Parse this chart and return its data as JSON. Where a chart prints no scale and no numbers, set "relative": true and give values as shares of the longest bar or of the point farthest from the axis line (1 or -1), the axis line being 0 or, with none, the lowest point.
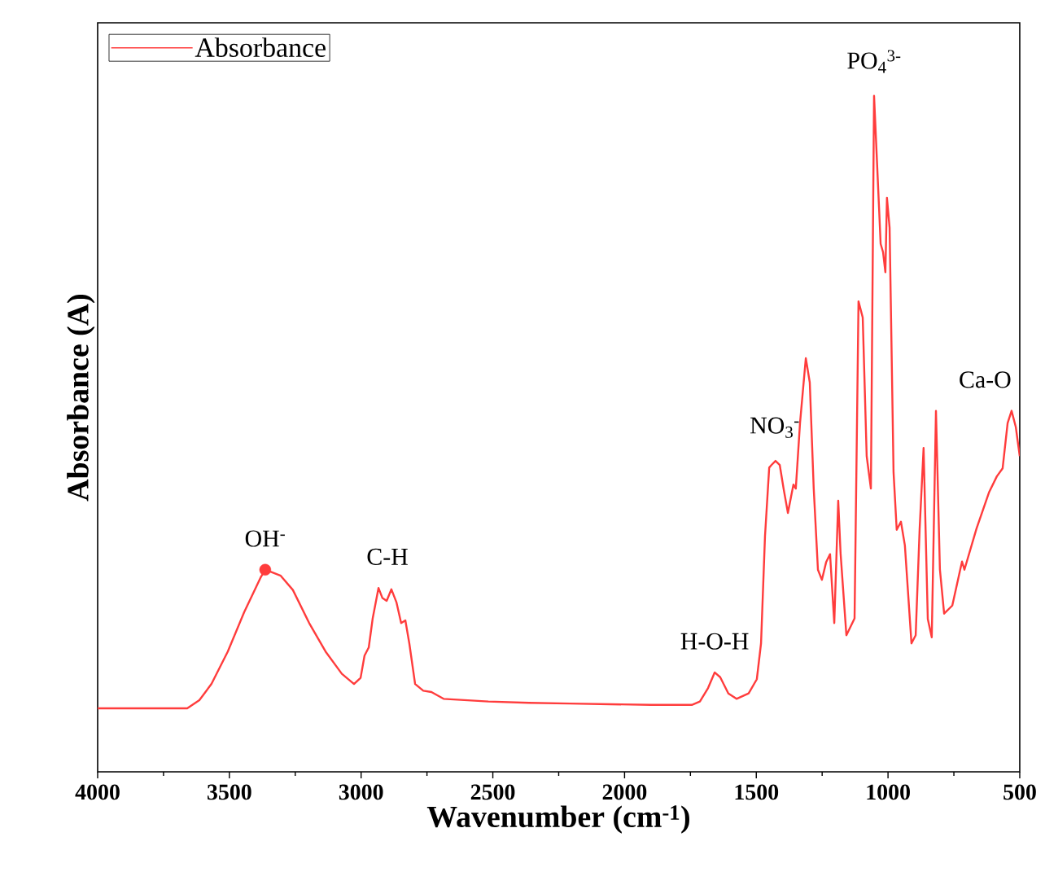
{
  "chart_data": {
    "type": "line",
    "xlabel": "Wavenumber (cm$^{-1}$)",
    "ylabel": "Absorbance (A)",
    "relative": true,
    "xlim": [
      4000,
      500
    ],
    "xticks": [
      4000,
      3500,
      3000,
      2500,
      2000,
      1500,
      1000,
      500
    ],
    "legend": "top left",
    "line_style": "solid",
    "marker": "none",
    "series": [
      {
        "name": "Absorbance",
        "color": "#ff3c3c",
        "x": [
          4000,
          3660,
          3614,
          3568,
          3506,
          3444,
          3382,
          3364,
          3305,
          3259,
          3197,
          3135,
          3073,
          3027,
          3002,
          2987,
          2971,
          2956,
          2934,
          2919,
          2903,
          2885,
          2866,
          2848,
          2832,
          2817,
          2795,
          2764,
          2733,
          2687,
          2517,
          2363,
          2208,
          2054,
          1899,
          1745,
          1714,
          1683,
          1658,
          1637,
          1606,
          1575,
          1529,
          1498,
          1482,
          1467,
          1451,
          1442,
          1427,
          1411,
          1396,
          1380,
          1368,
          1359,
          1350,
          1334,
          1312,
          1297,
          1282,
          1266,
          1251,
          1235,
          1220,
          1204,
          1189,
          1180,
          1158,
          1143,
          1127,
          1112,
          1096,
          1081,
          1065,
          1053,
          1028,
          1019,
          1010,
          1004,
          994,
          979,
          967,
          951,
          936,
          911,
          895,
          880,
          865,
          849,
          834,
          818,
          803,
          787,
          756,
          726,
          719,
          710,
          664,
          617,
          587,
          565,
          546,
          531,
          515,
          500
        ],
        "values": [
          0.094,
          0.094,
          0.106,
          0.13,
          0.178,
          0.236,
          0.287,
          0.299,
          0.29,
          0.269,
          0.22,
          0.178,
          0.145,
          0.13,
          0.139,
          0.172,
          0.184,
          0.227,
          0.272,
          0.257,
          0.253,
          0.27,
          0.251,
          0.22,
          0.224,
          0.19,
          0.13,
          0.12,
          0.118,
          0.108,
          0.104,
          0.102,
          0.101,
          0.1,
          0.099,
          0.099,
          0.104,
          0.124,
          0.147,
          0.14,
          0.116,
          0.108,
          0.116,
          0.137,
          0.19,
          0.348,
          0.45,
          0.454,
          0.46,
          0.454,
          0.418,
          0.383,
          0.407,
          0.425,
          0.419,
          0.516,
          0.612,
          0.576,
          0.419,
          0.299,
          0.284,
          0.31,
          0.322,
          0.22,
          0.401,
          0.323,
          0.202,
          0.214,
          0.227,
          0.696,
          0.672,
          0.467,
          0.419,
          1.0,
          0.781,
          0.769,
          0.739,
          0.849,
          0.805,
          0.443,
          0.358,
          0.37,
          0.335,
          0.19,
          0.202,
          0.359,
          0.479,
          0.226,
          0.199,
          0.534,
          0.299,
          0.234,
          0.246,
          0.299,
          0.311,
          0.299,
          0.36,
          0.413,
          0.437,
          0.449,
          0.516,
          0.534,
          0.51,
          0.467
        ]
      },
      {
        "type": "scatter",
        "marker": "circle",
        "color": "#ff3c3c",
        "x": [
          3364
        ],
        "values": [
          0.299
        ]
      }
    ],
    "annotations": [
      {
        "text": "OH$^{-}$",
        "x": 3364,
        "y": 0.299
      },
      {
        "text": "C-H",
        "x": 2900,
        "y": 0.272
      },
      {
        "text": "H-O-H",
        "x": 1658,
        "y": 0.147
      },
      {
        "text": "NO$_{3}$$^{-}$",
        "x": 1430,
        "y": 0.46
      },
      {
        "text": "PO$_{4}$$^{3-}$",
        "x": 1053,
        "y": 1.0
      },
      {
        "text": "Ca-O",
        "x": 531,
        "y": 0.534
      }
    ]
  }
}
